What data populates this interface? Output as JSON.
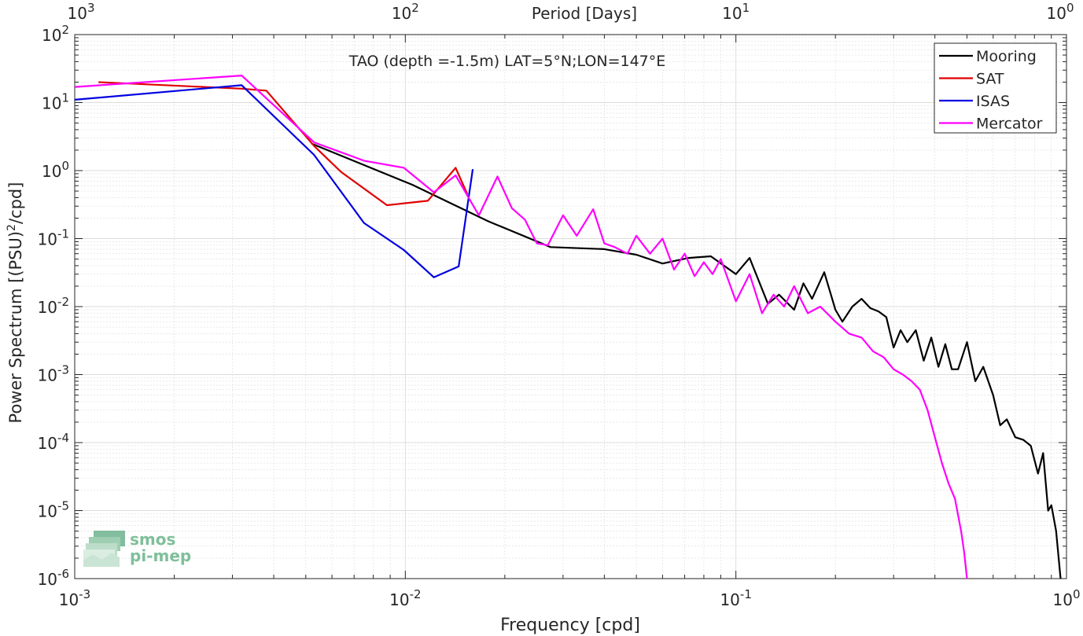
{
  "chart_data": {
    "type": "line",
    "title": "TAO (depth =-1.5m) LAT=5°N;LON=147°E",
    "xlabel": "Frequency [cpd]",
    "ylabel": "Power Spectrum [(PSU)",
    "ylabel_sup": "2",
    "ylabel_tail": "/cpd]",
    "top_xlabel": "Period [Days]",
    "x_scale": "log",
    "y_scale": "log",
    "xlim": [
      0.001,
      1
    ],
    "ylim": [
      1e-06,
      100
    ],
    "grid": true,
    "minor_grid": true,
    "legend_position": "top-right",
    "x_ticks": [
      {
        "v": 0.001,
        "b": "10",
        "e": "-3"
      },
      {
        "v": 0.01,
        "b": "10",
        "e": "-2"
      },
      {
        "v": 0.1,
        "b": "10",
        "e": "-1"
      },
      {
        "v": 1,
        "b": "10",
        "e": "0"
      }
    ],
    "y_ticks": [
      {
        "v": 1e-06,
        "b": "10",
        "e": "-6"
      },
      {
        "v": 1e-05,
        "b": "10",
        "e": "-5"
      },
      {
        "v": 0.0001,
        "b": "10",
        "e": "-4"
      },
      {
        "v": 0.001,
        "b": "10",
        "e": "-3"
      },
      {
        "v": 0.01,
        "b": "10",
        "e": "-2"
      },
      {
        "v": 0.1,
        "b": "10",
        "e": "-1"
      },
      {
        "v": 1,
        "b": "10",
        "e": "0"
      },
      {
        "v": 10,
        "b": "10",
        "e": "1"
      },
      {
        "v": 100,
        "b": "10",
        "e": "2"
      }
    ],
    "top_ticks": [
      {
        "v": 0.001,
        "b": "10",
        "e": "3"
      },
      {
        "v": 0.01,
        "b": "10",
        "e": "2"
      },
      {
        "v": 0.1,
        "b": "10",
        "e": "1"
      },
      {
        "v": 1,
        "b": "10",
        "e": "0"
      }
    ],
    "series": [
      {
        "name": "Mooring",
        "color": "#000000",
        "x": [
          0.0052,
          0.0105,
          0.0178,
          0.0275,
          0.04,
          0.05,
          0.06,
          0.072,
          0.084,
          0.1,
          0.11,
          0.125,
          0.135,
          0.15,
          0.16,
          0.17,
          0.185,
          0.2,
          0.21,
          0.225,
          0.24,
          0.255,
          0.27,
          0.285,
          0.3,
          0.315,
          0.33,
          0.35,
          0.37,
          0.39,
          0.41,
          0.43,
          0.45,
          0.47,
          0.5,
          0.53,
          0.56,
          0.6,
          0.63,
          0.66,
          0.7,
          0.74,
          0.78,
          0.82,
          0.85,
          0.88,
          0.9,
          0.93,
          0.96
        ],
        "y": [
          2.5,
          0.62,
          0.18,
          0.075,
          0.07,
          0.058,
          0.043,
          0.052,
          0.055,
          0.03,
          0.052,
          0.011,
          0.015,
          0.009,
          0.022,
          0.013,
          0.032,
          0.009,
          0.006,
          0.01,
          0.013,
          0.0095,
          0.0085,
          0.007,
          0.0025,
          0.0045,
          0.003,
          0.0045,
          0.0016,
          0.0035,
          0.0013,
          0.0028,
          0.0012,
          0.0012,
          0.003,
          0.0008,
          0.0013,
          0.0005,
          0.00018,
          0.00022,
          0.00012,
          0.00011,
          9e-05,
          3.5e-05,
          7e-05,
          1e-05,
          1.2e-05,
          5e-06,
          1e-06
        ]
      },
      {
        "name": "SAT",
        "color": "#e00000",
        "x": [
          0.00118,
          0.0032,
          0.0038,
          0.0053,
          0.0064,
          0.0088,
          0.0117,
          0.0142,
          0.0154
        ],
        "y": [
          20.0,
          16.0,
          15.0,
          2.3,
          0.95,
          0.31,
          0.36,
          1.1,
          0.45
        ]
      },
      {
        "name": "ISAS",
        "color": "#0000e0",
        "x": [
          0.001,
          0.0032,
          0.0053,
          0.0075,
          0.0099,
          0.0122,
          0.0145,
          0.016
        ],
        "y": [
          11.0,
          18.0,
          1.7,
          0.17,
          0.068,
          0.027,
          0.039,
          1.05
        ]
      },
      {
        "name": "Mercator",
        "color": "#ff00ff",
        "x": [
          0.001,
          0.0032,
          0.0053,
          0.0075,
          0.0099,
          0.0122,
          0.0142,
          0.0167,
          0.019,
          0.021,
          0.023,
          0.025,
          0.027,
          0.03,
          0.033,
          0.037,
          0.04,
          0.043,
          0.047,
          0.05,
          0.055,
          0.06,
          0.065,
          0.07,
          0.075,
          0.08,
          0.085,
          0.09,
          0.1,
          0.11,
          0.12,
          0.13,
          0.14,
          0.15,
          0.165,
          0.18,
          0.2,
          0.22,
          0.24,
          0.26,
          0.28,
          0.3,
          0.32,
          0.34,
          0.36,
          0.38,
          0.4,
          0.42,
          0.44,
          0.46,
          0.48,
          0.49,
          0.5
        ],
        "y": [
          17.0,
          25.0,
          2.6,
          1.4,
          1.1,
          0.48,
          0.85,
          0.22,
          0.82,
          0.28,
          0.19,
          0.085,
          0.08,
          0.22,
          0.11,
          0.27,
          0.085,
          0.075,
          0.06,
          0.11,
          0.06,
          0.1,
          0.035,
          0.06,
          0.028,
          0.045,
          0.03,
          0.05,
          0.012,
          0.03,
          0.008,
          0.015,
          0.01,
          0.02,
          0.008,
          0.01,
          0.006,
          0.004,
          0.0035,
          0.0022,
          0.0018,
          0.0012,
          0.001,
          0.0008,
          0.0006,
          0.0003,
          0.00012,
          5e-05,
          2.5e-05,
          1.5e-05,
          5e-06,
          2.5e-06,
          1e-06
        ]
      }
    ]
  },
  "logo": {
    "line1": "smos",
    "line2": "pi-mep"
  },
  "colors": {
    "grid": "#dcdcdc",
    "axis": "#262626",
    "logo": "#7fbf9a"
  }
}
